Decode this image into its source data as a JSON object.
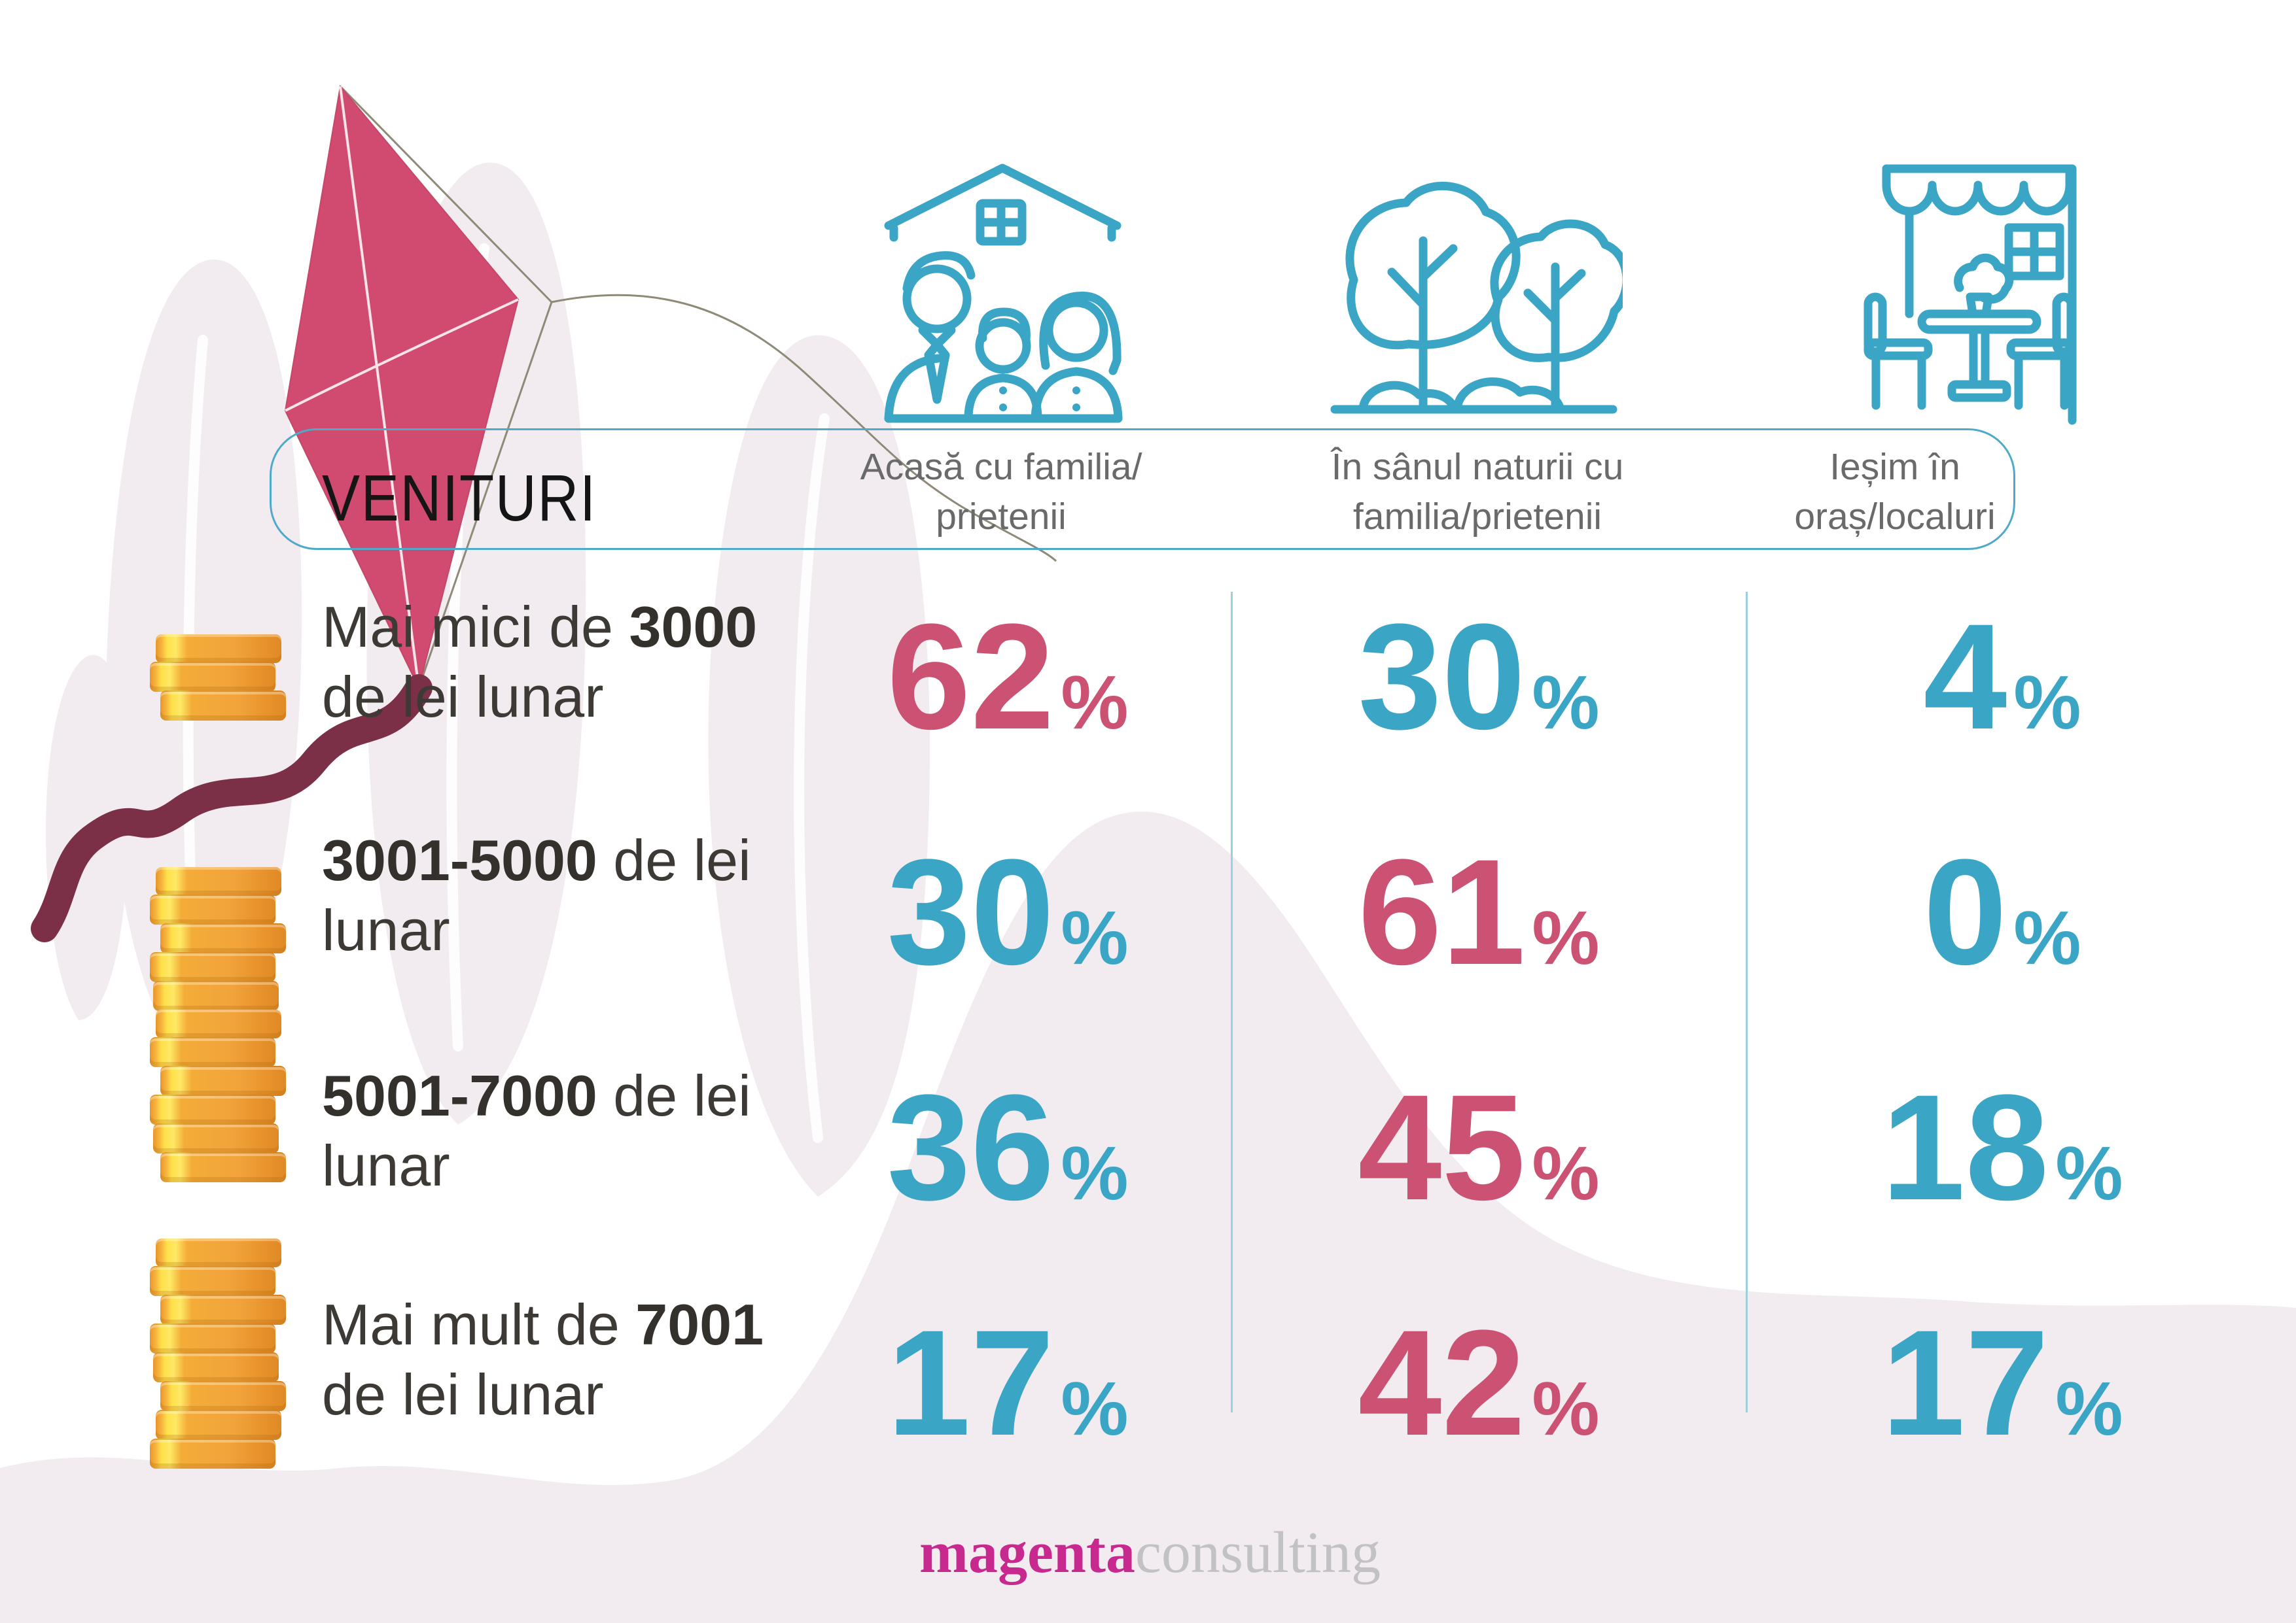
{
  "palette": {
    "blue": "#3BA5C6",
    "pink": "#CB5273",
    "kite_pink": "#D14A6F",
    "kite_tail_maroon": "#7B3048",
    "background_pink": "#F2ECF1",
    "coin_gold": "#F2A43B",
    "coin_highlight": "#FFE049",
    "header_border_blue": "#4FAAC9",
    "divider_blue": "#9ECFDF",
    "label_dark": "#3D3A35",
    "column_header_gray": "#6A6A6A",
    "logo_magenta": "#C7298F",
    "logo_gray": "#C2C1C3"
  },
  "header": {
    "title": "VENITURI",
    "columns": [
      {
        "icon": "house-family-icon",
        "line1": "Acasă cu familia/",
        "line2": "prietenii"
      },
      {
        "icon": "trees-nature-icon",
        "line1": "În sânul naturii cu",
        "line2": "familia/prietenii"
      },
      {
        "icon": "cafe-terrace-icon",
        "line1": "Ieșim în",
        "line2": "oraș/localuri"
      }
    ]
  },
  "rows": [
    {
      "coins": 3,
      "label": {
        "line1_prefix": "Mai mici de ",
        "line1_strong": "3000",
        "line1_suffix": "",
        "line2": "de lei lunar"
      },
      "values": [
        {
          "number": "62",
          "unit": "%",
          "tone": "pink"
        },
        {
          "number": "30",
          "unit": "%",
          "tone": "blue"
        },
        {
          "number": "4",
          "unit": "%",
          "tone": "blue"
        }
      ]
    },
    {
      "coins": 5,
      "label": {
        "line1_prefix": "",
        "line1_strong": "3001-5000",
        "line1_suffix": " de lei",
        "line2": "lunar"
      },
      "values": [
        {
          "number": "30",
          "unit": "%",
          "tone": "blue"
        },
        {
          "number": "61",
          "unit": "%",
          "tone": "pink"
        },
        {
          "number": "0",
          "unit": "%",
          "tone": "blue"
        }
      ]
    },
    {
      "coins": 6,
      "label": {
        "line1_prefix": "",
        "line1_strong": "5001-7000",
        "line1_suffix": " de lei",
        "line2": "lunar"
      },
      "values": [
        {
          "number": "36",
          "unit": "%",
          "tone": "blue"
        },
        {
          "number": "45",
          "unit": "%",
          "tone": "pink"
        },
        {
          "number": "18",
          "unit": "%",
          "tone": "blue"
        }
      ]
    },
    {
      "coins": 8,
      "label": {
        "line1_prefix": "Mai mult de ",
        "line1_strong": "7001",
        "line1_suffix": "",
        "line2": "de lei lunar"
      },
      "values": [
        {
          "number": "17",
          "unit": "%",
          "tone": "blue"
        },
        {
          "number": "42",
          "unit": "%",
          "tone": "pink"
        },
        {
          "number": "17",
          "unit": "%",
          "tone": "blue"
        }
      ]
    }
  ],
  "footer": {
    "logo_primary": "magenta",
    "logo_secondary": "consulting"
  },
  "chart_data": {
    "type": "table",
    "title": "VENITURI",
    "unit": "%",
    "categories": [
      "Mai mici de 3000 de lei lunar",
      "3001-5000 de lei lunar",
      "5001-7000 de lei lunar",
      "Mai mult de 7001 de lei lunar"
    ],
    "series": [
      {
        "name": "Acasă cu familia/prietenii",
        "values": [
          62,
          30,
          36,
          17
        ]
      },
      {
        "name": "În sânul naturii cu familia/prietenii",
        "values": [
          30,
          61,
          45,
          42
        ]
      },
      {
        "name": "Ieșim în oraș/localuri",
        "values": [
          4,
          0,
          18,
          17
        ]
      }
    ],
    "legend_position": "top",
    "grid": false
  }
}
